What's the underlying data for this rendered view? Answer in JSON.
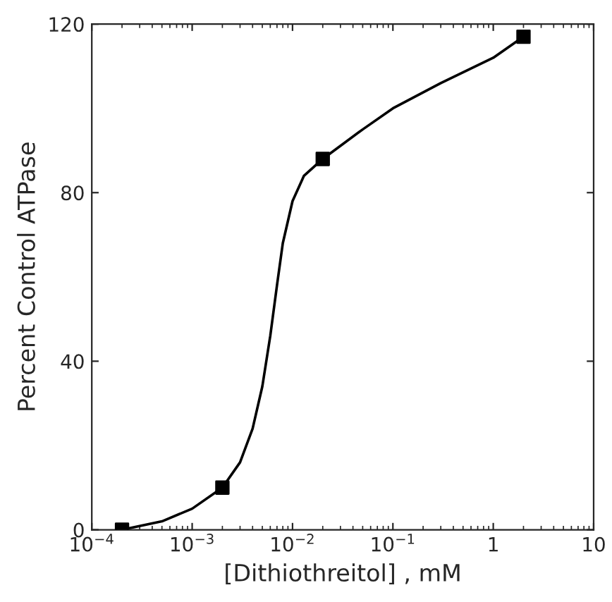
{
  "chart_data": {
    "type": "scatter",
    "xlabel": "[Dithiothreitol] , mM",
    "ylabel": "Percent Control ATPase",
    "log": "x",
    "xlim": [
      0.0001,
      10
    ],
    "xticks": [
      {
        "value": 0.0001,
        "label": "10$^{−4}$"
      },
      {
        "value": 0.001,
        "label": "10$^{−3}$"
      },
      {
        "value": 0.01,
        "label": "10$^{−2}$"
      },
      {
        "value": 0.1,
        "label": "10$^{−1}$"
      },
      {
        "value": 1,
        "label": "1"
      },
      {
        "value": 10,
        "label": "10"
      }
    ],
    "ylim": [
      0,
      120
    ],
    "yticks": [
      0,
      40,
      80,
      120
    ],
    "grid": false,
    "series": [
      {
        "type": "scatter",
        "color": "#000000",
        "marker": "square",
        "x": [
          0.0002,
          0.002,
          0.02,
          2
        ],
        "values": [
          0,
          10,
          88,
          117
        ]
      },
      {
        "type": "line",
        "color": "#000000",
        "marker": "none",
        "line_style": "solid",
        "x": [
          0.0002,
          0.0005,
          0.001,
          0.002,
          0.003,
          0.004,
          0.005,
          0.006,
          0.007,
          0.008,
          0.01,
          0.013,
          0.02,
          0.05,
          0.1,
          0.3,
          1,
          2
        ],
        "values": [
          0,
          2,
          5,
          10,
          16,
          24,
          34,
          46,
          58,
          68,
          78,
          84,
          88,
          95,
          100,
          106,
          112,
          117
        ]
      }
    ]
  }
}
